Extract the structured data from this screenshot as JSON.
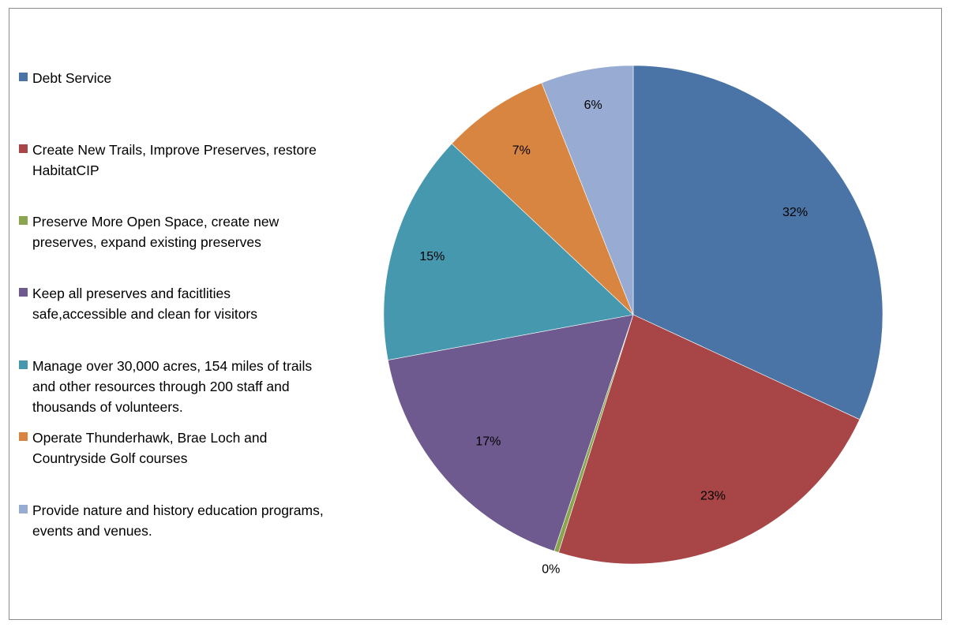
{
  "chart_data": {
    "type": "pie",
    "title": "",
    "start_angle_deg": 0,
    "direction": "clockwise",
    "legend_position": "left",
    "slices": [
      {
        "label": "Debt Service",
        "value": 32,
        "value_label": "32%",
        "color": "#4a74a6"
      },
      {
        "label": "Create New Trails, Improve Preserves, restore HabitatCIP",
        "value": 23,
        "value_label": "23%",
        "color": "#a84647"
      },
      {
        "label": "Preserve More Open Space, create new preserves, expand existing preserves",
        "value": 0.3,
        "value_label": "0%",
        "color": "#89a54e"
      },
      {
        "label": "Keep all preserves and facitlities safe,accessible and clean for visitors",
        "value": 17,
        "value_label": "17%",
        "color": "#6f5a8f"
      },
      {
        "label": "Manage over 30,000 acres, 154 miles of trails and other resources through 200 staff and thousands of volunteers.",
        "value": 15,
        "value_label": "15%",
        "color": "#4698af"
      },
      {
        "label": "Operate Thunderhawk, Brae Loch and Countryside Golf courses",
        "value": 7,
        "value_label": "7%",
        "color": "#d98542"
      },
      {
        "label": "Provide nature and history education programs, events and venues.",
        "value": 6,
        "value_label": "6%",
        "color": "#97abd3"
      }
    ]
  }
}
